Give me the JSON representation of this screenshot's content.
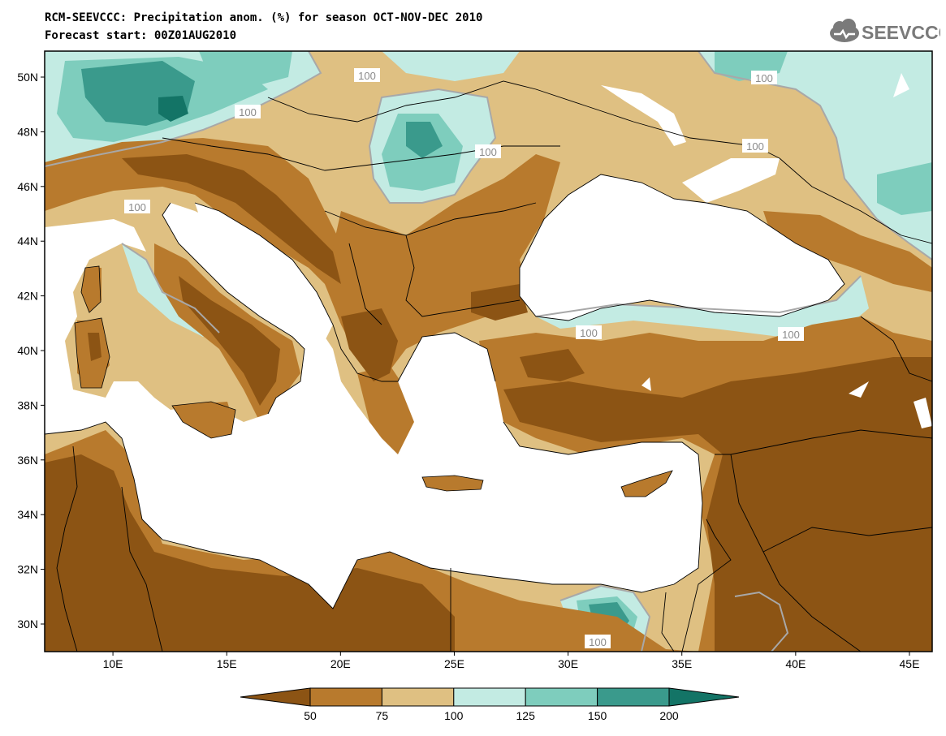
{
  "header": {
    "title_line1": "RCM-SEEVCCC: Precipitation anom. (%) for season OCT-NOV-DEC 2010",
    "title_line2": "Forecast start: 00Z01AUG2010",
    "logo_text": "SEEVCCC"
  },
  "map": {
    "lon_ticks": [
      "10E",
      "15E",
      "20E",
      "25E",
      "30E",
      "35E",
      "40E",
      "45E"
    ],
    "lat_ticks": [
      "50N",
      "48N",
      "46N",
      "44N",
      "42N",
      "40N",
      "38N",
      "36N",
      "34N",
      "32N",
      "30N"
    ],
    "contour_label": "100",
    "lon_range": [
      7,
      46
    ],
    "lat_range": [
      29,
      51
    ]
  },
  "legend": {
    "labels": [
      "50",
      "75",
      "100",
      "125",
      "150",
      "200"
    ],
    "colors": [
      "#8c5414",
      "#b87a2d",
      "#dfc082",
      "#c3ebe3",
      "#7ecdbd",
      "#3a9a8c",
      "#137466"
    ]
  }
}
